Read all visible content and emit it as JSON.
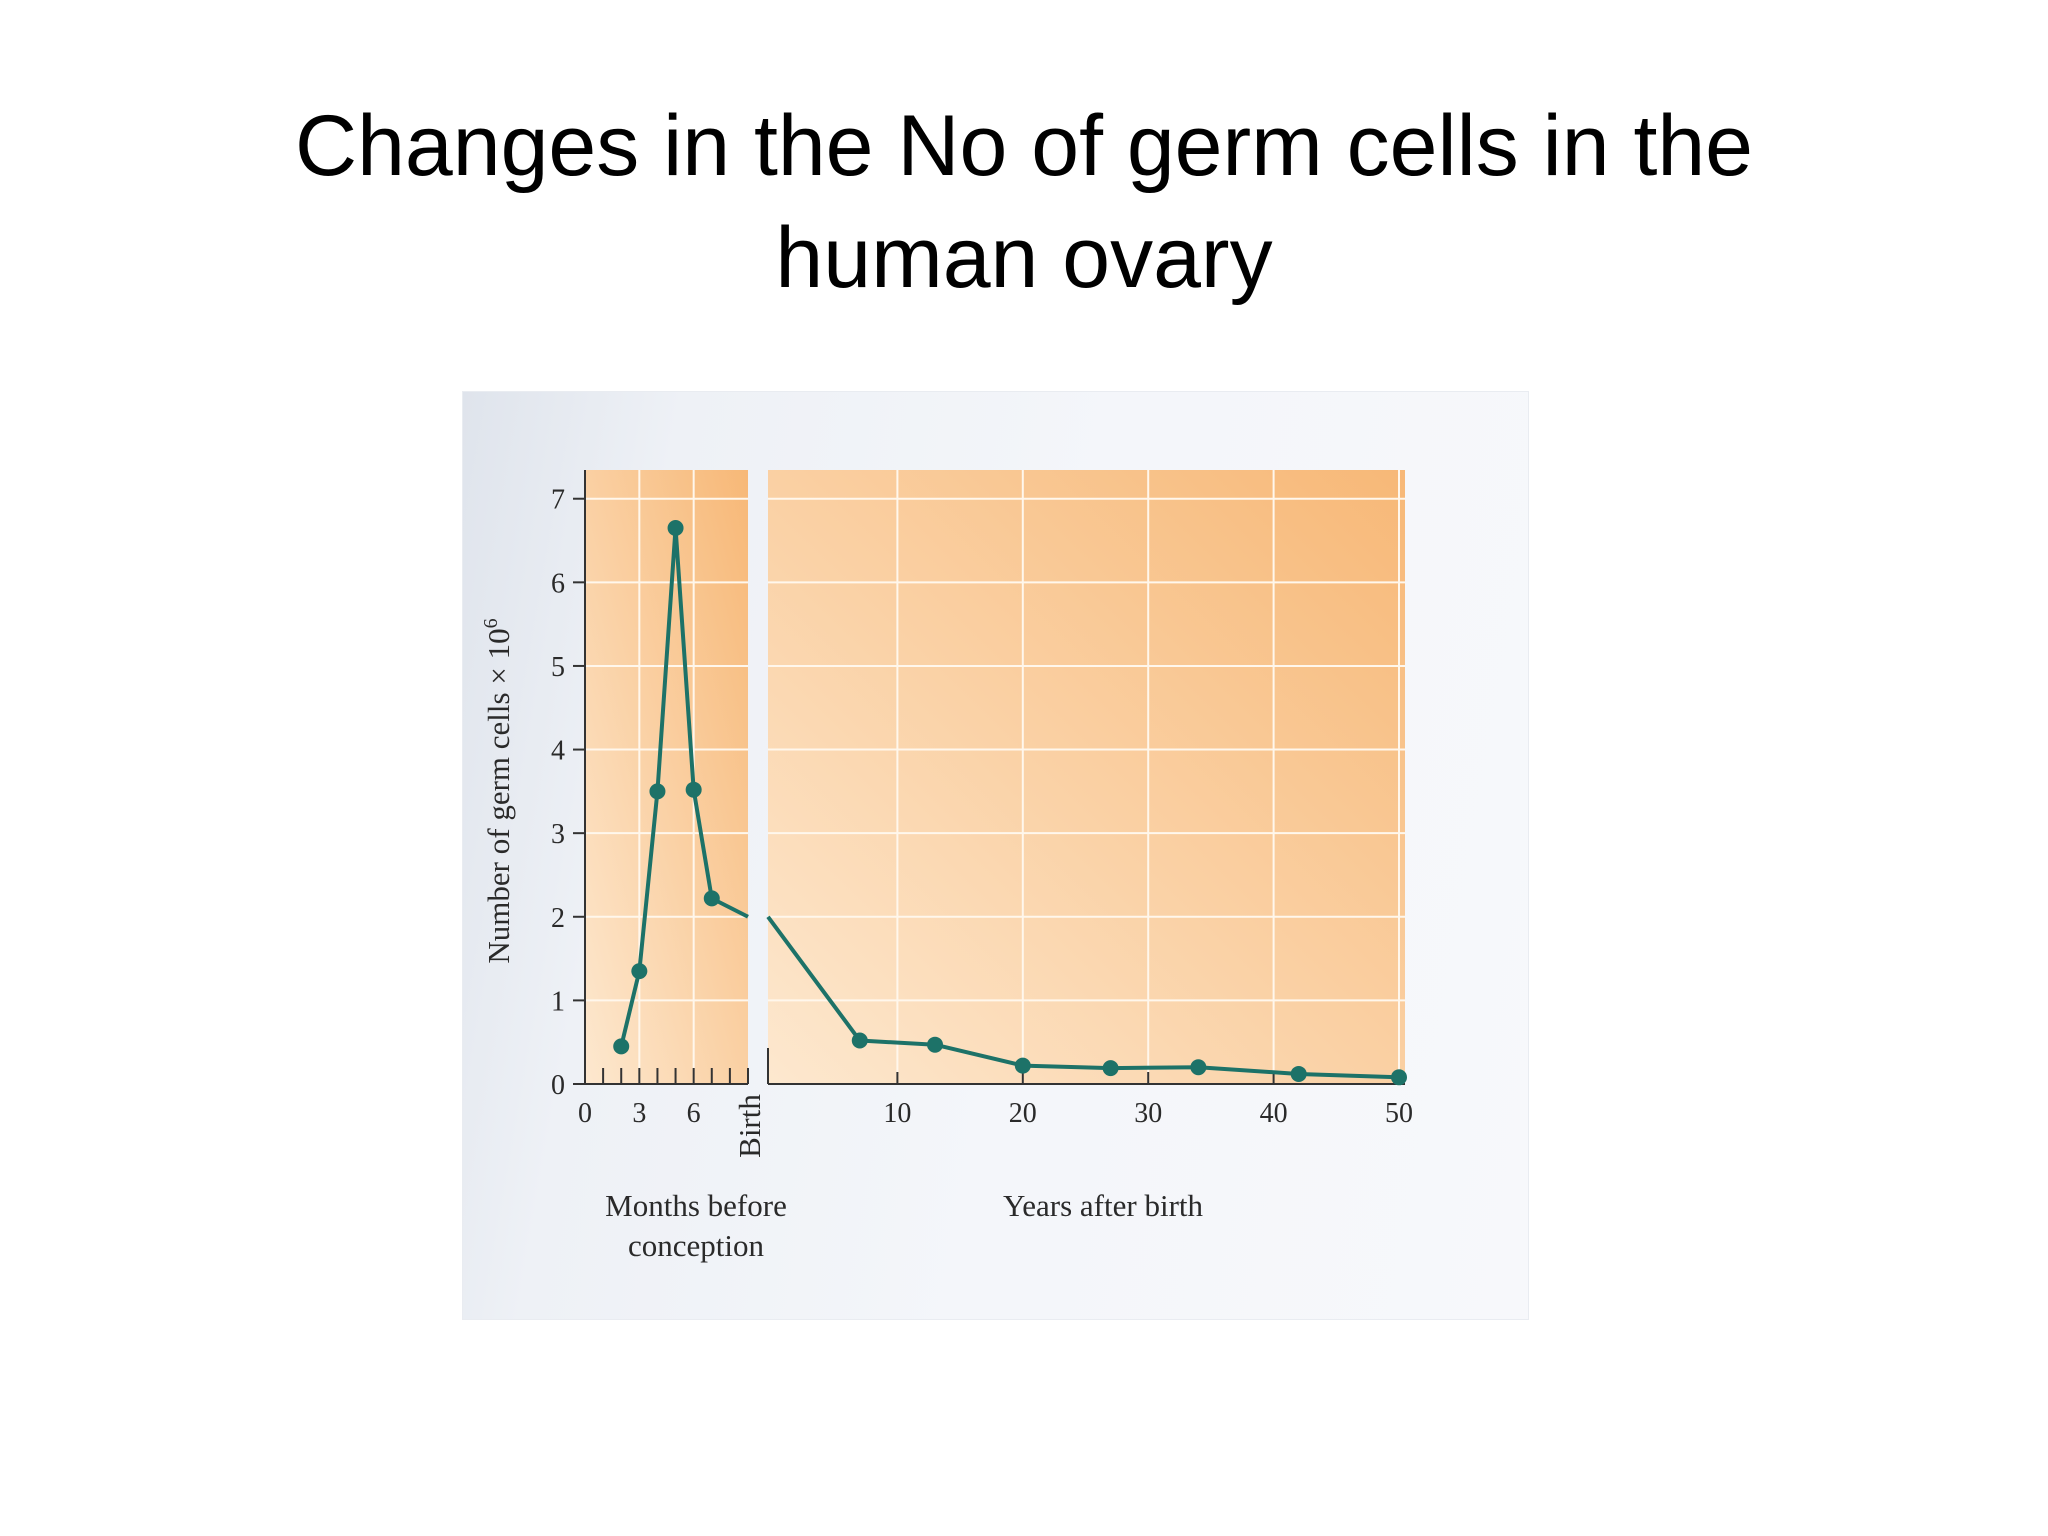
{
  "slide": {
    "title_line1": "Changes in the No of germ cells in the",
    "title_line2": "human ovary"
  },
  "colors": {
    "plot_bg_light": "#fde8cf",
    "plot_bg_strong": "#f7b877",
    "grid": "#fff7ec",
    "series": "#1d7268",
    "axis": "#333333"
  },
  "chart_data": {
    "type": "line",
    "ylabel": "Number of germ cells × 10",
    "ylabel_superscript": "6",
    "ylim": [
      0,
      7.2
    ],
    "yticks": [
      "0",
      "1",
      "2",
      "3",
      "4",
      "5",
      "6",
      "7"
    ],
    "grid": true,
    "panels": [
      {
        "name": "prenatal",
        "xlabel_line1": "Months before",
        "xlabel_line2": "conception",
        "xlim": [
          0,
          9
        ],
        "xticks": [
          "0",
          "3",
          "6"
        ],
        "x": [
          2,
          3,
          4,
          5,
          6,
          7
        ],
        "y": [
          0.45,
          1.35,
          3.5,
          6.65,
          3.52,
          2.22
        ]
      },
      {
        "name": "postnatal",
        "xlabel": "Years after birth",
        "xlim": [
          0,
          50
        ],
        "xticks": [
          "10",
          "20",
          "30",
          "40",
          "50"
        ],
        "x": [
          7,
          13,
          20,
          27,
          34,
          42,
          50
        ],
        "y": [
          0.52,
          0.47,
          0.22,
          0.19,
          0.2,
          0.12,
          0.08
        ]
      }
    ],
    "birth_label": "Birth",
    "birth_value": 2.0
  }
}
